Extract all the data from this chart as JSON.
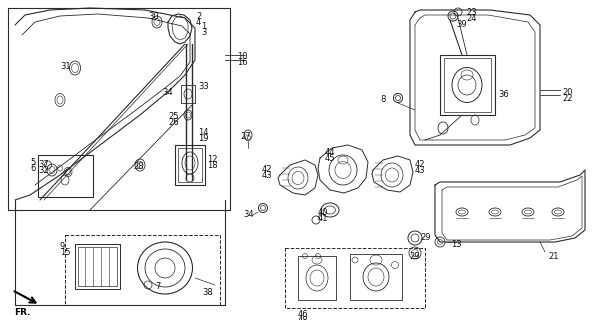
{
  "bg_color": "#ffffff",
  "line_color": "#2a2a2a",
  "text_color": "#111111",
  "fig_width": 5.95,
  "fig_height": 3.2,
  "dpi": 100
}
